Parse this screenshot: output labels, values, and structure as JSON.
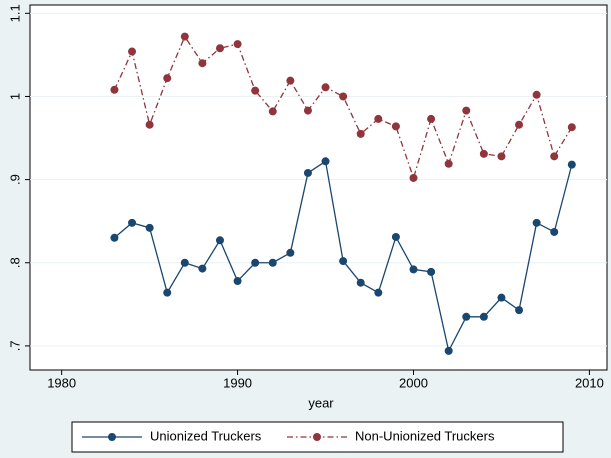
{
  "chart_data": {
    "type": "line",
    "x_label": "year",
    "x": [
      1983,
      1984,
      1985,
      1986,
      1987,
      1988,
      1989,
      1990,
      1991,
      1992,
      1993,
      1994,
      1995,
      1996,
      1997,
      1998,
      1999,
      2000,
      2001,
      2002,
      2003,
      2004,
      2005,
      2006,
      2007,
      2008,
      2009
    ],
    "series": [
      {
        "name": "Unionized Truckers",
        "color": "#1a476f",
        "line_style": "solid",
        "values": [
          0.83,
          0.848,
          0.842,
          0.764,
          0.8,
          0.793,
          0.827,
          0.778,
          0.8,
          0.8,
          0.812,
          0.908,
          0.922,
          0.802,
          0.776,
          0.764,
          0.831,
          0.792,
          0.789,
          0.694,
          0.735,
          0.735,
          0.758,
          0.743,
          0.848,
          0.837,
          0.918
        ]
      },
      {
        "name": "Non-Unionized Truckers",
        "color": "#90353b",
        "line_style": "dashdot",
        "values": [
          1.008,
          1.054,
          0.966,
          1.022,
          1.072,
          1.04,
          1.058,
          1.063,
          1.007,
          0.982,
          1.019,
          0.983,
          1.011,
          1.0,
          0.955,
          0.973,
          0.964,
          0.902,
          0.973,
          0.919,
          0.983,
          0.931,
          0.928,
          0.966,
          1.002,
          0.928,
          0.963
        ]
      }
    ],
    "xlim": [
      1978.2,
      2011
    ],
    "xticks": [
      1980,
      1990,
      2000,
      2010
    ],
    "ylim": [
      0.671,
      1.11
    ],
    "yticks": [
      {
        "value": 0.7,
        "label": ".7"
      },
      {
        "value": 0.8,
        "label": ".8"
      },
      {
        "value": 0.9,
        "label": ".9"
      },
      1,
      {
        "value": 1.1,
        "label": "1.1"
      }
    ],
    "grid": true,
    "legend_position": "bottom"
  }
}
